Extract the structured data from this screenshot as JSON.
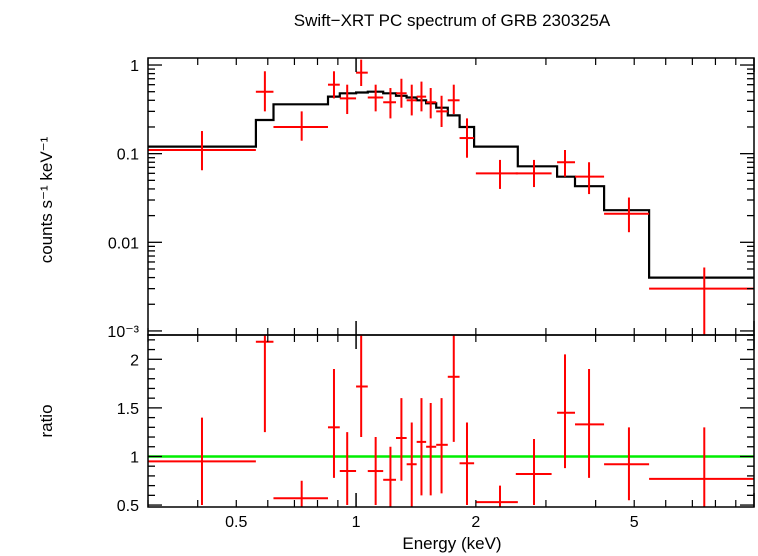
{
  "chart_data": [
    {
      "type": "scatter",
      "title": "Swift−XRT PC spectrum of GRB 230325A",
      "xlabel": "",
      "ylabel": "counts s⁻¹ keV⁻¹",
      "xscale": "log",
      "yscale": "log",
      "xlim": [
        0.3,
        10
      ],
      "ylim": [
        0.0009,
        1.2
      ],
      "yticks": [
        {
          "value": 1,
          "label": "1"
        },
        {
          "value": 0.1,
          "label": "0.1"
        },
        {
          "value": 0.01,
          "label": "0.01"
        },
        {
          "value": 0.001,
          "label": "10⁻³"
        }
      ],
      "colors": {
        "data": "#ff0000",
        "model": "#000000"
      },
      "series": [
        {
          "kind": "data",
          "points": [
            {
              "x": 0.41,
              "xlo": 0.3,
              "xhi": 0.56,
              "y": 0.11,
              "ylo": 0.065,
              "yhi": 0.18
            },
            {
              "x": 0.59,
              "xlo": 0.56,
              "xhi": 0.62,
              "y": 0.5,
              "ylo": 0.3,
              "yhi": 0.85
            },
            {
              "x": 0.73,
              "xlo": 0.62,
              "xhi": 0.85,
              "y": 0.2,
              "ylo": 0.14,
              "yhi": 0.3
            },
            {
              "x": 0.88,
              "xlo": 0.85,
              "xhi": 0.91,
              "y": 0.6,
              "ylo": 0.42,
              "yhi": 0.85
            },
            {
              "x": 0.95,
              "xlo": 0.91,
              "xhi": 1.0,
              "y": 0.42,
              "ylo": 0.28,
              "yhi": 0.6
            },
            {
              "x": 1.03,
              "xlo": 1.0,
              "xhi": 1.07,
              "y": 0.82,
              "ylo": 0.58,
              "yhi": 1.15
            },
            {
              "x": 1.12,
              "xlo": 1.07,
              "xhi": 1.17,
              "y": 0.43,
              "ylo": 0.3,
              "yhi": 0.6
            },
            {
              "x": 1.22,
              "xlo": 1.17,
              "xhi": 1.26,
              "y": 0.38,
              "ylo": 0.25,
              "yhi": 0.55
            },
            {
              "x": 1.3,
              "xlo": 1.26,
              "xhi": 1.34,
              "y": 0.48,
              "ylo": 0.33,
              "yhi": 0.7
            },
            {
              "x": 1.38,
              "xlo": 1.34,
              "xhi": 1.42,
              "y": 0.4,
              "ylo": 0.27,
              "yhi": 0.6
            },
            {
              "x": 1.46,
              "xlo": 1.42,
              "xhi": 1.5,
              "y": 0.44,
              "ylo": 0.3,
              "yhi": 0.65
            },
            {
              "x": 1.54,
              "xlo": 1.5,
              "xhi": 1.59,
              "y": 0.38,
              "ylo": 0.25,
              "yhi": 0.55
            },
            {
              "x": 1.64,
              "xlo": 1.59,
              "xhi": 1.7,
              "y": 0.3,
              "ylo": 0.2,
              "yhi": 0.45
            },
            {
              "x": 1.76,
              "xlo": 1.7,
              "xhi": 1.82,
              "y": 0.4,
              "ylo": 0.28,
              "yhi": 0.6
            },
            {
              "x": 1.9,
              "xlo": 1.82,
              "xhi": 1.98,
              "y": 0.15,
              "ylo": 0.09,
              "yhi": 0.25
            },
            {
              "x": 2.3,
              "xlo": 2.0,
              "xhi": 2.55,
              "y": 0.06,
              "ylo": 0.04,
              "yhi": 0.085
            },
            {
              "x": 2.8,
              "xlo": 2.52,
              "xhi": 3.1,
              "y": 0.06,
              "ylo": 0.042,
              "yhi": 0.085
            },
            {
              "x": 3.35,
              "xlo": 3.2,
              "xhi": 3.55,
              "y": 0.08,
              "ylo": 0.055,
              "yhi": 0.11
            },
            {
              "x": 3.85,
              "xlo": 3.55,
              "xhi": 4.2,
              "y": 0.055,
              "ylo": 0.035,
              "yhi": 0.08
            },
            {
              "x": 4.85,
              "xlo": 4.2,
              "xhi": 5.45,
              "y": 0.021,
              "ylo": 0.013,
              "yhi": 0.032
            },
            {
              "x": 7.5,
              "xlo": 5.45,
              "xhi": 10,
              "y": 0.003,
              "ylo": 0.0008,
              "yhi": 0.0052
            }
          ]
        },
        {
          "kind": "model",
          "steps": [
            {
              "xlo": 0.3,
              "xhi": 0.56,
              "y": 0.12
            },
            {
              "xlo": 0.56,
              "xhi": 0.62,
              "y": 0.24
            },
            {
              "xlo": 0.62,
              "xhi": 0.85,
              "y": 0.36
            },
            {
              "xlo": 0.85,
              "xhi": 0.91,
              "y": 0.44
            },
            {
              "xlo": 0.91,
              "xhi": 1.0,
              "y": 0.48
            },
            {
              "xlo": 1.0,
              "xhi": 1.07,
              "y": 0.49
            },
            {
              "xlo": 1.07,
              "xhi": 1.17,
              "y": 0.5
            },
            {
              "xlo": 1.17,
              "xhi": 1.26,
              "y": 0.48
            },
            {
              "xlo": 1.26,
              "xhi": 1.34,
              "y": 0.45
            },
            {
              "xlo": 1.34,
              "xhi": 1.42,
              "y": 0.43
            },
            {
              "xlo": 1.42,
              "xhi": 1.5,
              "y": 0.4
            },
            {
              "xlo": 1.5,
              "xhi": 1.59,
              "y": 0.37
            },
            {
              "xlo": 1.59,
              "xhi": 1.7,
              "y": 0.33
            },
            {
              "xlo": 1.7,
              "xhi": 1.82,
              "y": 0.27
            },
            {
              "xlo": 1.82,
              "xhi": 1.98,
              "y": 0.2
            },
            {
              "xlo": 1.98,
              "xhi": 2.55,
              "y": 0.12
            },
            {
              "xlo": 2.55,
              "xhi": 3.2,
              "y": 0.072
            },
            {
              "xlo": 3.2,
              "xhi": 3.55,
              "y": 0.055
            },
            {
              "xlo": 3.55,
              "xhi": 4.2,
              "y": 0.043
            },
            {
              "xlo": 4.2,
              "xhi": 5.45,
              "y": 0.023
            },
            {
              "xlo": 5.45,
              "xhi": 10,
              "y": 0.004
            }
          ]
        }
      ]
    },
    {
      "type": "scatter",
      "title": "",
      "xlabel": "Energy (keV)",
      "ylabel": "ratio",
      "xscale": "log",
      "yscale": "linear",
      "xlim": [
        0.3,
        10
      ],
      "ylim": [
        0.48,
        2.25
      ],
      "xticks": [
        {
          "value": 0.5,
          "label": "0.5"
        },
        {
          "value": 1,
          "label": "1"
        },
        {
          "value": 2,
          "label": "2"
        },
        {
          "value": 5,
          "label": "5"
        }
      ],
      "yticks": [
        {
          "value": 0.5,
          "label": "0.5"
        },
        {
          "value": 1,
          "label": "1"
        },
        {
          "value": 1.5,
          "label": "1.5"
        },
        {
          "value": 2,
          "label": "2"
        }
      ],
      "reference_line": {
        "y": 1,
        "color": "#00ee00"
      },
      "colors": {
        "data": "#ff0000"
      },
      "points": [
        {
          "x": 0.41,
          "xlo": 0.3,
          "xhi": 0.56,
          "y": 0.95,
          "ylo": 0.5,
          "yhi": 1.4
        },
        {
          "x": 0.59,
          "xlo": 0.56,
          "xhi": 0.62,
          "y": 2.18,
          "ylo": 1.25,
          "yhi": 2.25
        },
        {
          "x": 0.73,
          "xlo": 0.62,
          "xhi": 0.85,
          "y": 0.57,
          "ylo": 0.48,
          "yhi": 0.75
        },
        {
          "x": 0.88,
          "xlo": 0.85,
          "xhi": 0.91,
          "y": 1.3,
          "ylo": 0.78,
          "yhi": 1.9
        },
        {
          "x": 0.95,
          "xlo": 0.91,
          "xhi": 1.0,
          "y": 0.85,
          "ylo": 0.5,
          "yhi": 1.25
        },
        {
          "x": 1.03,
          "xlo": 1.0,
          "xhi": 1.07,
          "y": 1.72,
          "ylo": 1.2,
          "yhi": 2.25
        },
        {
          "x": 1.12,
          "xlo": 1.07,
          "xhi": 1.17,
          "y": 0.85,
          "ylo": 0.5,
          "yhi": 1.2
        },
        {
          "x": 1.22,
          "xlo": 1.17,
          "xhi": 1.26,
          "y": 0.76,
          "ylo": 0.48,
          "yhi": 1.1
        },
        {
          "x": 1.3,
          "xlo": 1.26,
          "xhi": 1.34,
          "y": 1.19,
          "ylo": 0.75,
          "yhi": 1.6
        },
        {
          "x": 1.38,
          "xlo": 1.34,
          "xhi": 1.42,
          "y": 0.92,
          "ylo": 0.48,
          "yhi": 1.35
        },
        {
          "x": 1.46,
          "xlo": 1.42,
          "xhi": 1.5,
          "y": 1.15,
          "ylo": 0.6,
          "yhi": 1.6
        },
        {
          "x": 1.54,
          "xlo": 1.5,
          "xhi": 1.59,
          "y": 1.1,
          "ylo": 0.6,
          "yhi": 1.55
        },
        {
          "x": 1.64,
          "xlo": 1.59,
          "xhi": 1.7,
          "y": 1.12,
          "ylo": 0.62,
          "yhi": 1.6
        },
        {
          "x": 1.76,
          "xlo": 1.7,
          "xhi": 1.82,
          "y": 1.82,
          "ylo": 1.15,
          "yhi": 2.25
        },
        {
          "x": 1.9,
          "xlo": 1.82,
          "xhi": 1.98,
          "y": 0.93,
          "ylo": 0.5,
          "yhi": 1.35
        },
        {
          "x": 2.3,
          "xlo": 2.0,
          "xhi": 2.55,
          "y": 0.53,
          "ylo": 0.48,
          "yhi": 0.7
        },
        {
          "x": 2.8,
          "xlo": 2.52,
          "xhi": 3.1,
          "y": 0.82,
          "ylo": 0.5,
          "yhi": 1.18
        },
        {
          "x": 3.35,
          "xlo": 3.2,
          "xhi": 3.55,
          "y": 1.45,
          "ylo": 0.88,
          "yhi": 2.05
        },
        {
          "x": 3.85,
          "xlo": 3.55,
          "xhi": 4.2,
          "y": 1.33,
          "ylo": 0.78,
          "yhi": 1.9
        },
        {
          "x": 4.85,
          "xlo": 4.2,
          "xhi": 5.45,
          "y": 0.92,
          "ylo": 0.55,
          "yhi": 1.3
        },
        {
          "x": 7.5,
          "xlo": 5.45,
          "xhi": 10,
          "y": 0.77,
          "ylo": 0.48,
          "yhi": 1.3
        }
      ]
    }
  ]
}
